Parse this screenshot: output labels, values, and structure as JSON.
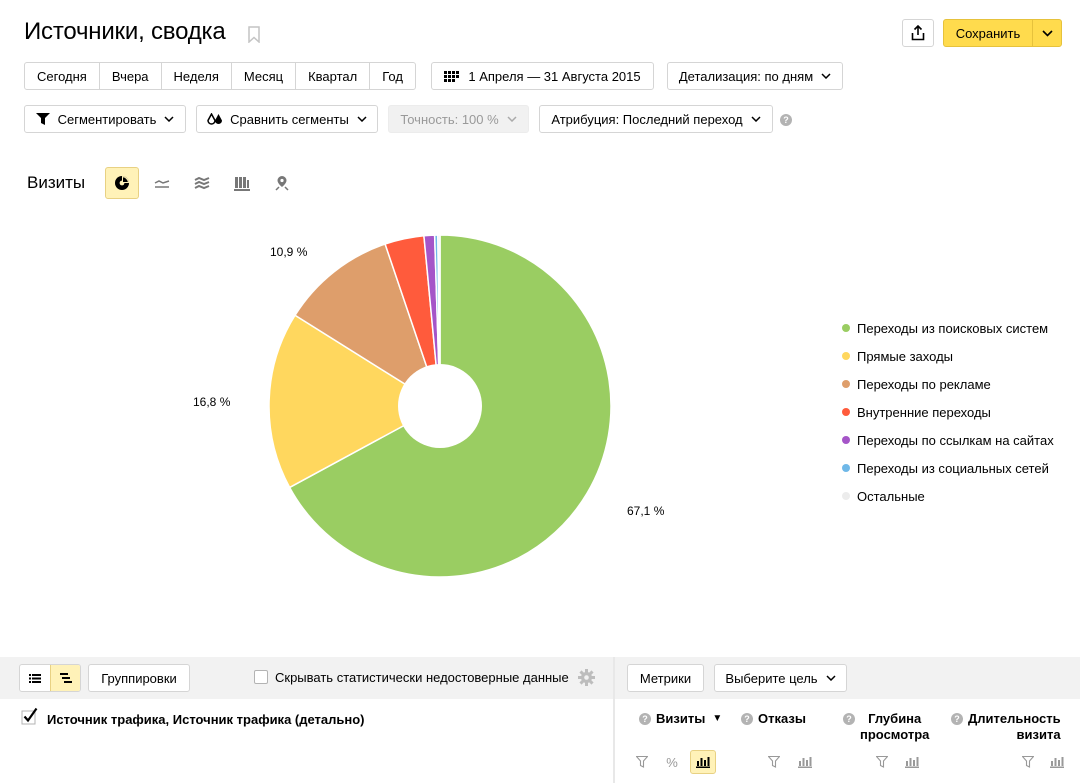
{
  "header": {
    "title": "Источники, сводка",
    "save_label": "Сохранить"
  },
  "periods": [
    "Сегодня",
    "Вчера",
    "Неделя",
    "Месяц",
    "Квартал",
    "Год"
  ],
  "date_range": "1 Апреля — 31 Августа 2015",
  "detail_label": "Детализация: по дням",
  "filters": {
    "segment_label": "Сегментировать",
    "compare_label": "Сравнить сегменты",
    "accuracy_label": "Точность: 100 %",
    "attribution_label": "Атрибуция: Последний переход"
  },
  "chart_header": {
    "metric_label": "Визиты",
    "chart_types": [
      "pie-chart-icon",
      "line-chart-icon",
      "area-chart-icon",
      "bar-chart-icon",
      "map-icon"
    ]
  },
  "chart_data": {
    "type": "pie",
    "title": "",
    "slices": [
      {
        "name": "Переходы из поисковых систем",
        "value": 67.1,
        "color": "#9acd62",
        "label": "67,1 %"
      },
      {
        "name": "Прямые заходы",
        "value": 16.8,
        "color": "#ffd75e",
        "label": "16,8 %"
      },
      {
        "name": "Переходы по рекламе",
        "value": 10.9,
        "color": "#de9e6b",
        "label": "10,9 %"
      },
      {
        "name": "Внутренние переходы",
        "value": 3.7,
        "color": "#ff5b3c",
        "label": ""
      },
      {
        "name": "Переходы по ссылкам на сайтах",
        "value": 1.0,
        "color": "#a555c8",
        "label": ""
      },
      {
        "name": "Переходы из социальных сетей",
        "value": 0.3,
        "color": "#6fb8e8",
        "label": ""
      },
      {
        "name": "Остальные",
        "value": 0.2,
        "color": "#ececec",
        "label": ""
      }
    ],
    "legend_placement": "right"
  },
  "table_controls": {
    "groupings_label": "Группировки",
    "hide_label": "Скрывать статистически недостоверные данные",
    "metrics_label": "Метрики",
    "goal_label": "Выберите цель"
  },
  "table": {
    "dimension_label": "Источник трафика, Источник трафика (детально)",
    "columns": {
      "visits": "Визиты",
      "bounces": "Отказы",
      "depth_line1": "Глубина",
      "depth_line2": "просмотра",
      "duration_line1": "Длительность",
      "duration_line2": "визита"
    }
  }
}
